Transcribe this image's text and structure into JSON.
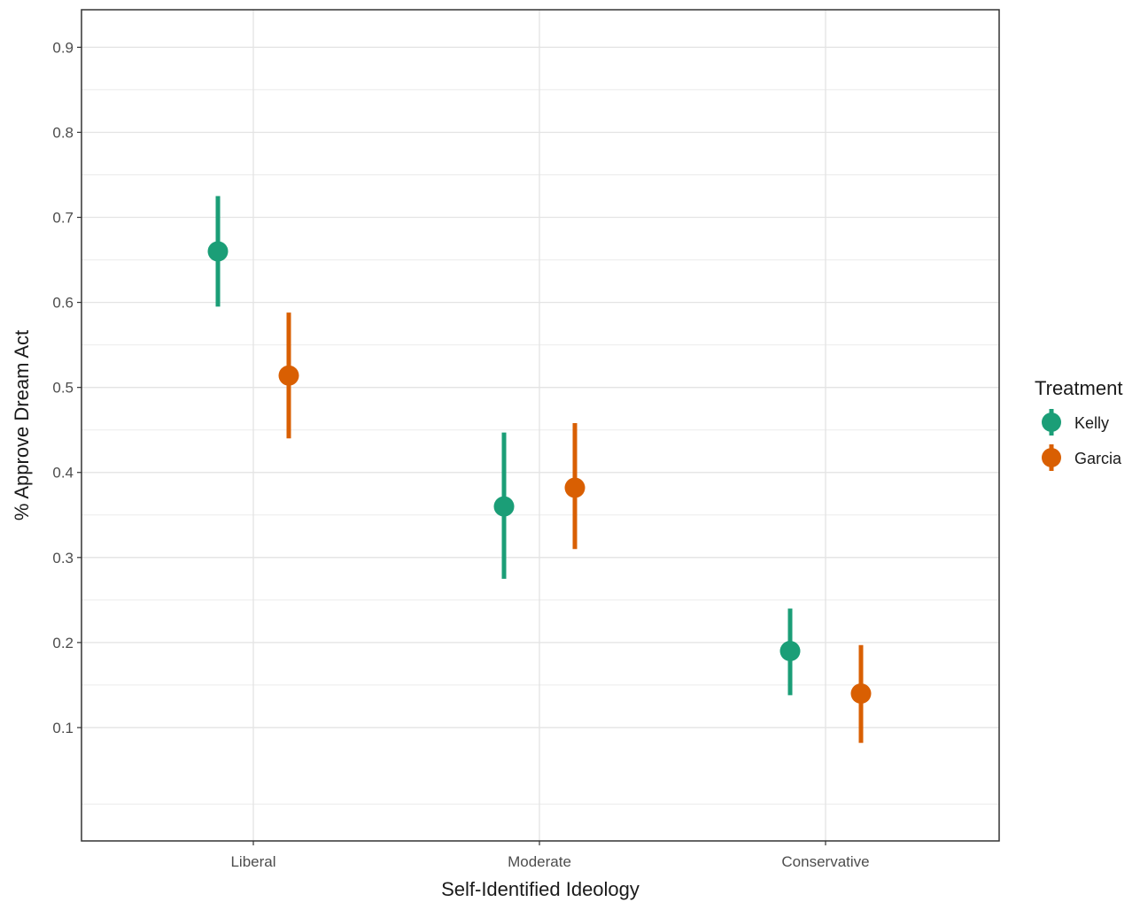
{
  "chart_data": {
    "type": "scatter",
    "subtype": "point-range",
    "xlabel": "Self-Identified Ideology",
    "ylabel": "% Approve Dream Act",
    "categories": [
      "Liberal",
      "Moderate",
      "Conservative"
    ],
    "ylim": [
      0,
      0.93
    ],
    "yticks": [
      0.1,
      0.2,
      0.3,
      0.4,
      0.5,
      0.6,
      0.7,
      0.8,
      0.9
    ],
    "ytick_labels": [
      "0.1",
      "0.2",
      "0.3",
      "0.4",
      "0.5",
      "0.6",
      "0.7",
      "0.8",
      "0.9"
    ],
    "grid": true,
    "legend": {
      "title": "Treatment",
      "position": "right"
    },
    "series": [
      {
        "name": "Kelly",
        "color": "#1b9e77",
        "values": [
          0.66,
          0.36,
          0.19
        ],
        "lower": [
          0.595,
          0.275,
          0.138
        ],
        "upper": [
          0.725,
          0.447,
          0.24
        ]
      },
      {
        "name": "Garcia",
        "color": "#d95f02",
        "values": [
          0.514,
          0.382,
          0.14
        ],
        "lower": [
          0.44,
          0.31,
          0.082
        ],
        "upper": [
          0.588,
          0.458,
          0.197
        ]
      }
    ]
  }
}
